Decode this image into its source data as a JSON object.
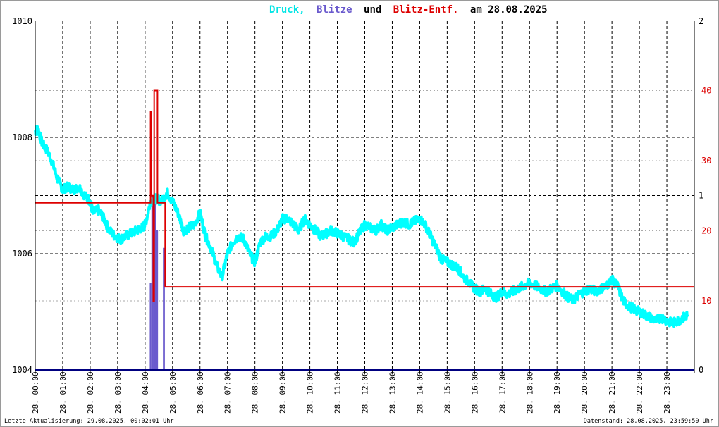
{
  "title": {
    "word1": "Druck,",
    "word2": "Blitze",
    "word3": "und",
    "word4": "Blitz-Entf.",
    "word5": "am 28.08.2025"
  },
  "footer": {
    "left": "Letzte Aktualisierung: 29.08.2025, 00:02:01 Uhr",
    "right": "Datenstand: 28.08.2025, 23:59:50 Uhr"
  },
  "colors": {
    "pressure": "#00ffff",
    "strikes": "#6a5acd",
    "distance": "#dd0000",
    "title_und": "#000000"
  },
  "chart_data": {
    "type": "line",
    "x_ticks": [
      "28. 00:00",
      "28. 01:00",
      "28. 02:00",
      "28. 03:00",
      "28. 04:00",
      "28. 05:00",
      "28. 06:00",
      "28. 07:00",
      "28. 08:00",
      "28. 09:00",
      "28. 10:00",
      "28. 11:00",
      "28. 12:00",
      "28. 13:00",
      "28. 14:00",
      "28. 15:00",
      "28. 16:00",
      "28. 17:00",
      "28. 18:00",
      "28. 19:00",
      "28. 20:00",
      "28. 21:00",
      "28. 22:00",
      "28. 23:00"
    ],
    "x_range_hours": [
      0,
      24
    ],
    "y_left": {
      "min": 1004,
      "max": 1010,
      "ticks": [
        "1004",
        "1006",
        "1008",
        "1010"
      ]
    },
    "y_right_strikes": {
      "min": 0,
      "max": 2,
      "ticks": [
        "0",
        "1",
        "2"
      ]
    },
    "y_right_distance": {
      "ticks": [
        "10",
        "20",
        "30",
        "40"
      ]
    },
    "grid": true,
    "series": [
      {
        "name": "Druck",
        "x": [
          0.0,
          0.1,
          0.25,
          0.4,
          0.6,
          0.8,
          1.0,
          1.2,
          1.4,
          1.6,
          1.8,
          2.0,
          2.1,
          2.3,
          2.5,
          2.7,
          2.9,
          3.1,
          3.3,
          3.5,
          3.7,
          3.9,
          4.0,
          4.2,
          4.4,
          4.6,
          4.8,
          5.0,
          5.2,
          5.4,
          5.6,
          5.8,
          6.0,
          6.2,
          6.4,
          6.6,
          6.8,
          7.0,
          7.2,
          7.4,
          7.6,
          7.8,
          8.0,
          8.2,
          8.4,
          8.6,
          8.8,
          9.0,
          9.2,
          9.4,
          9.6,
          9.8,
          10.0,
          10.2,
          10.4,
          10.6,
          10.8,
          11.0,
          11.2,
          11.4,
          11.6,
          11.8,
          12.0,
          12.2,
          12.4,
          12.6,
          12.8,
          13.0,
          13.2,
          13.4,
          13.6,
          13.8,
          14.0,
          14.2,
          14.4,
          14.6,
          14.8,
          15.0,
          15.2,
          15.4,
          15.6,
          15.8,
          16.0,
          16.2,
          16.4,
          16.6,
          16.8,
          17.0,
          17.2,
          17.4,
          17.6,
          17.8,
          18.0,
          18.2,
          18.4,
          18.6,
          18.8,
          19.0,
          19.2,
          19.4,
          19.6,
          19.8,
          20.0,
          20.2,
          20.4,
          20.6,
          20.8,
          21.0,
          21.2,
          21.4,
          21.6,
          21.8,
          22.0,
          22.2,
          22.4,
          22.6,
          22.8,
          23.0,
          23.2,
          23.4,
          23.6,
          23.75
        ],
        "values": [
          1008.1,
          1008.15,
          1007.9,
          1007.8,
          1007.6,
          1007.3,
          1007.1,
          1007.15,
          1007.1,
          1007.15,
          1007.0,
          1006.9,
          1006.7,
          1006.75,
          1006.6,
          1006.4,
          1006.3,
          1006.25,
          1006.3,
          1006.35,
          1006.4,
          1006.45,
          1006.5,
          1006.9,
          1006.95,
          1006.9,
          1007.05,
          1006.9,
          1006.7,
          1006.4,
          1006.45,
          1006.5,
          1006.7,
          1006.3,
          1006.1,
          1005.8,
          1005.6,
          1006.0,
          1006.2,
          1006.3,
          1006.25,
          1006.0,
          1005.85,
          1006.2,
          1006.3,
          1006.3,
          1006.4,
          1006.6,
          1006.6,
          1006.5,
          1006.4,
          1006.6,
          1006.5,
          1006.4,
          1006.3,
          1006.35,
          1006.4,
          1006.35,
          1006.3,
          1006.25,
          1006.2,
          1006.35,
          1006.5,
          1006.45,
          1006.4,
          1006.5,
          1006.4,
          1006.45,
          1006.5,
          1006.55,
          1006.5,
          1006.55,
          1006.6,
          1006.5,
          1006.3,
          1006.1,
          1005.9,
          1005.85,
          1005.8,
          1005.75,
          1005.6,
          1005.5,
          1005.4,
          1005.35,
          1005.4,
          1005.3,
          1005.25,
          1005.35,
          1005.3,
          1005.35,
          1005.4,
          1005.45,
          1005.5,
          1005.45,
          1005.4,
          1005.35,
          1005.4,
          1005.45,
          1005.35,
          1005.25,
          1005.2,
          1005.3,
          1005.35,
          1005.4,
          1005.35,
          1005.4,
          1005.45,
          1005.55,
          1005.45,
          1005.2,
          1005.1,
          1005.05,
          1005.0,
          1004.95,
          1004.9,
          1004.85,
          1004.9,
          1004.85,
          1004.8,
          1004.85,
          1004.9,
          1004.95
        ]
      },
      {
        "name": "Blitze",
        "bars": [
          {
            "x_start": 4.17,
            "x_end": 4.23,
            "value": 0.5
          },
          {
            "x_start": 4.23,
            "x_end": 4.3,
            "value": 1.0
          },
          {
            "x_start": 4.3,
            "x_end": 4.4,
            "value": 1.0
          },
          {
            "x_start": 4.4,
            "x_end": 4.47,
            "value": 0.8
          },
          {
            "x_start": 4.65,
            "x_end": 4.72,
            "value": 0.7
          }
        ]
      },
      {
        "name": "Blitz-Entf.",
        "steps": [
          {
            "x": 0.0,
            "value": 24
          },
          {
            "x": 4.17,
            "value": 24
          },
          {
            "x": 4.2,
            "value": 37
          },
          {
            "x": 4.23,
            "value": 25
          },
          {
            "x": 4.3,
            "value": 10
          },
          {
            "x": 4.33,
            "value": 40
          },
          {
            "x": 4.43,
            "value": 40
          },
          {
            "x": 4.45,
            "value": 24
          },
          {
            "x": 4.7,
            "value": 24
          },
          {
            "x": 4.73,
            "value": 12
          },
          {
            "x": 24.0,
            "value": 12
          }
        ]
      }
    ]
  }
}
